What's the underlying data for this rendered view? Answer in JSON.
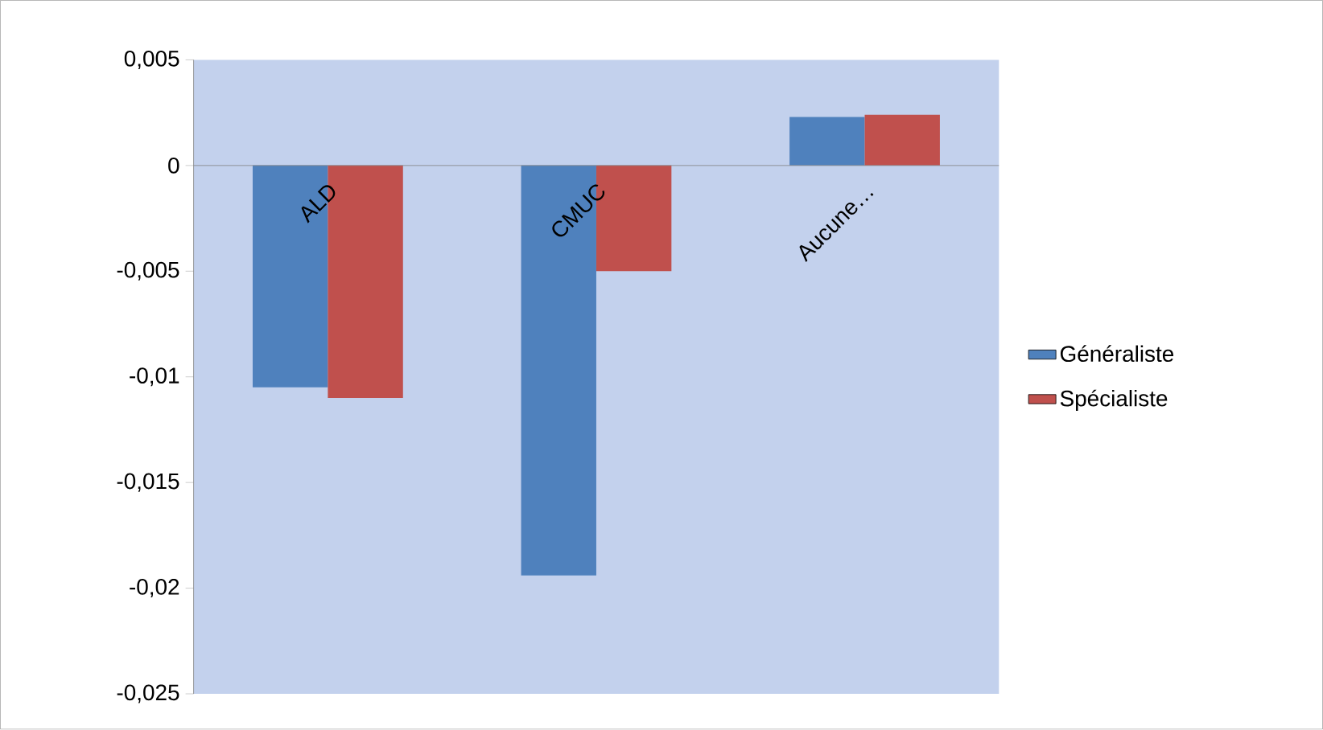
{
  "chart_data": {
    "type": "bar",
    "categories": [
      "ALD",
      "CMUC",
      "Aucune…"
    ],
    "series": [
      {
        "name": "Généraliste",
        "color": "#4f81bd",
        "values": [
          -0.0105,
          -0.0194,
          0.0023
        ]
      },
      {
        "name": "Spécialiste",
        "color": "#c0504d",
        "values": [
          -0.011,
          -0.005,
          0.0024
        ]
      }
    ],
    "ylim": [
      -0.025,
      0.005
    ],
    "yticks": [
      {
        "value": 0.005,
        "label": "0,005"
      },
      {
        "value": 0,
        "label": "0"
      },
      {
        "value": -0.005,
        "label": "-0,005"
      },
      {
        "value": -0.01,
        "label": "-0,01"
      },
      {
        "value": -0.015,
        "label": "-0,015"
      },
      {
        "value": -0.02,
        "label": "-0,02"
      },
      {
        "value": -0.025,
        "label": "-0,025"
      }
    ],
    "legend": "right"
  }
}
